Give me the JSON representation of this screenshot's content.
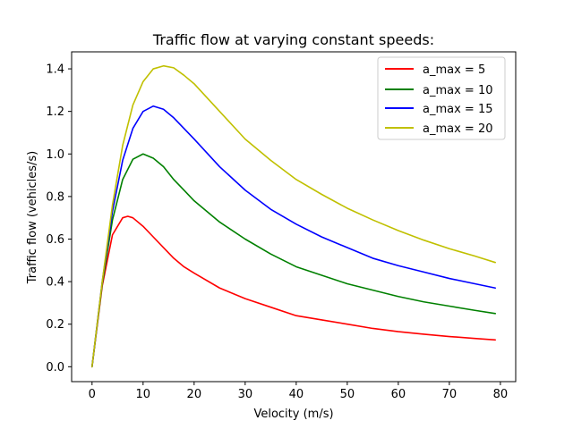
{
  "chart_data": {
    "type": "line",
    "title": "Traffic flow at varying constant speeds:",
    "xlabel": "Velocity (m/s)",
    "ylabel": "Traffic flow (vehicles/s)",
    "xlim": [
      -4,
      83
    ],
    "ylim": [
      -0.07,
      1.48
    ],
    "xticks": [
      0,
      10,
      20,
      30,
      40,
      50,
      60,
      70,
      80
    ],
    "yticks": [
      0.0,
      0.2,
      0.4,
      0.6,
      0.8,
      1.0,
      1.2,
      1.4
    ],
    "xtick_labels": [
      "0",
      "10",
      "20",
      "30",
      "40",
      "50",
      "60",
      "70",
      "80"
    ],
    "ytick_labels": [
      "0.0",
      "0.2",
      "0.4",
      "0.6",
      "0.8",
      "1.0",
      "1.2",
      "1.4"
    ],
    "grid": false,
    "legend_position": "top-right",
    "x_range": [
      0,
      79
    ],
    "series": [
      {
        "name": "a_max = 5",
        "a_max": 5,
        "color": "#ff0000",
        "x": [
          0,
          2,
          4,
          6,
          7,
          8,
          10,
          12,
          14,
          16,
          18,
          20,
          25,
          30,
          35,
          40,
          45,
          50,
          55,
          60,
          65,
          70,
          75,
          79
        ],
        "y": [
          0.0,
          0.38,
          0.62,
          0.7,
          0.707,
          0.7,
          0.66,
          0.61,
          0.56,
          0.51,
          0.47,
          0.44,
          0.37,
          0.32,
          0.28,
          0.24,
          0.22,
          0.2,
          0.18,
          0.165,
          0.153,
          0.142,
          0.133,
          0.126
        ]
      },
      {
        "name": "a_max = 10",
        "a_max": 10,
        "color": "#008000",
        "x": [
          0,
          2,
          4,
          6,
          8,
          10,
          12,
          14,
          16,
          18,
          20,
          25,
          30,
          35,
          40,
          45,
          50,
          55,
          60,
          65,
          70,
          75,
          79
        ],
        "y": [
          0.0,
          0.39,
          0.69,
          0.88,
          0.975,
          1.0,
          0.98,
          0.94,
          0.88,
          0.83,
          0.78,
          0.68,
          0.6,
          0.53,
          0.47,
          0.43,
          0.39,
          0.36,
          0.33,
          0.305,
          0.285,
          0.265,
          0.25
        ]
      },
      {
        "name": "a_max = 15",
        "a_max": 15,
        "color": "#0000ff",
        "x": [
          0,
          2,
          4,
          6,
          8,
          10,
          12,
          14,
          16,
          18,
          20,
          25,
          30,
          35,
          40,
          45,
          50,
          55,
          60,
          65,
          70,
          75,
          79
        ],
        "y": [
          0.0,
          0.4,
          0.73,
          0.97,
          1.12,
          1.2,
          1.225,
          1.21,
          1.17,
          1.12,
          1.07,
          0.94,
          0.83,
          0.74,
          0.67,
          0.61,
          0.56,
          0.51,
          0.475,
          0.445,
          0.415,
          0.39,
          0.37
        ]
      },
      {
        "name": "a_max = 20",
        "a_max": 20,
        "color": "#c0c000",
        "x": [
          0,
          2,
          4,
          6,
          8,
          10,
          12,
          14,
          16,
          18,
          20,
          25,
          30,
          35,
          40,
          45,
          50,
          55,
          60,
          65,
          70,
          75,
          79
        ],
        "y": [
          0.0,
          0.4,
          0.76,
          1.04,
          1.23,
          1.34,
          1.4,
          1.414,
          1.405,
          1.37,
          1.33,
          1.2,
          1.07,
          0.97,
          0.88,
          0.81,
          0.745,
          0.69,
          0.64,
          0.595,
          0.555,
          0.52,
          0.49
        ]
      }
    ]
  }
}
